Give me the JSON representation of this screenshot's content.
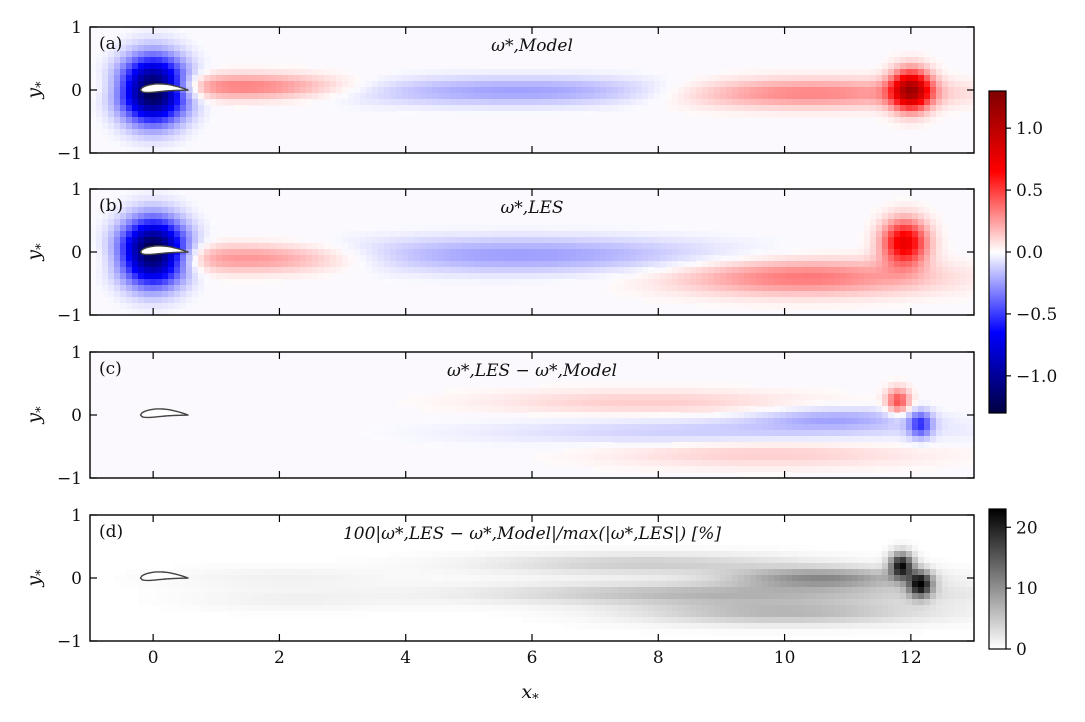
{
  "figure": {
    "xlabel": "x",
    "xlabel_sub": "*",
    "ylabel": "y",
    "ylabel_sub": "*"
  },
  "chart_data": [
    {
      "type": "heatmap",
      "panel": "(a)",
      "title": "ω*,Model",
      "xlim": [
        -1,
        13
      ],
      "ylim": [
        -1,
        1
      ],
      "xticks": [
        0,
        2,
        4,
        6,
        8,
        10,
        12
      ],
      "yticks": [
        -1,
        0,
        1
      ],
      "colorbar": "diverging",
      "blobs": [
        {
          "x": 0.0,
          "y": 0.0,
          "sx": 0.35,
          "sy": 0.35,
          "amp": -1.35
        },
        {
          "x": 1.5,
          "y": 0.05,
          "sx": 1.1,
          "sy": 0.14,
          "amp": 0.35
        },
        {
          "x": 6.0,
          "y": -0.02,
          "sx": 2.2,
          "sy": 0.16,
          "amp": -0.25
        },
        {
          "x": 10.2,
          "y": -0.05,
          "sx": 1.6,
          "sy": 0.16,
          "amp": 0.35
        },
        {
          "x": 12.0,
          "y": 0.0,
          "sx": 0.22,
          "sy": 0.22,
          "amp": 1.0
        }
      ],
      "airfoil_outline": true
    },
    {
      "type": "heatmap",
      "panel": "(b)",
      "title": "ω*,LES",
      "xlim": [
        -1,
        13
      ],
      "ylim": [
        -1,
        1
      ],
      "xticks": [
        0,
        2,
        4,
        6,
        8,
        10,
        12
      ],
      "yticks": [
        -1,
        0,
        1
      ],
      "colorbar": "diverging",
      "blobs": [
        {
          "x": 0.0,
          "y": 0.0,
          "sx": 0.35,
          "sy": 0.35,
          "amp": -1.35
        },
        {
          "x": 1.6,
          "y": -0.1,
          "sx": 1.2,
          "sy": 0.16,
          "amp": 0.3
        },
        {
          "x": 5.8,
          "y": -0.05,
          "sx": 2.2,
          "sy": 0.2,
          "amp": -0.25
        },
        {
          "x": 10.3,
          "y": -0.4,
          "sx": 1.4,
          "sy": 0.2,
          "amp": 0.35
        },
        {
          "x": 11.9,
          "y": 0.15,
          "sx": 0.25,
          "sy": 0.25,
          "amp": 0.75
        }
      ],
      "airfoil_outline": true
    },
    {
      "type": "heatmap",
      "panel": "(c)",
      "title": "ω*,LES − ω*,Model",
      "xlim": [
        -1,
        13
      ],
      "ylim": [
        -1,
        1
      ],
      "xticks": [
        0,
        2,
        4,
        6,
        8,
        10,
        12
      ],
      "yticks": [
        -1,
        0,
        1
      ],
      "colorbar": "diverging",
      "blobs": [
        {
          "x": 7.8,
          "y": 0.2,
          "sx": 1.8,
          "sy": 0.14,
          "amp": 0.13
        },
        {
          "x": 9.0,
          "y": -0.28,
          "sx": 2.6,
          "sy": 0.16,
          "amp": -0.14
        },
        {
          "x": 10.8,
          "y": -0.05,
          "sx": 0.9,
          "sy": 0.12,
          "amp": -0.2
        },
        {
          "x": 9.7,
          "y": -0.6,
          "sx": 1.8,
          "sy": 0.16,
          "amp": 0.14
        },
        {
          "x": 11.8,
          "y": 0.22,
          "sx": 0.13,
          "sy": 0.14,
          "amp": 0.45
        },
        {
          "x": 12.15,
          "y": -0.15,
          "sx": 0.13,
          "sy": 0.15,
          "amp": -0.45
        }
      ],
      "airfoil_outline": true
    },
    {
      "type": "heatmap",
      "panel": "(d)",
      "title": "100|ω*,LES − ω*,Model|/max(|ω*,LES|) [%]",
      "xlim": [
        -1,
        13
      ],
      "ylim": [
        -1,
        1
      ],
      "xticks": [
        0,
        2,
        4,
        6,
        8,
        10,
        12
      ],
      "yticks": [
        -1,
        0,
        1
      ],
      "colorbar": "gray",
      "blobs": [
        {
          "x": 2.0,
          "y": 0.0,
          "sx": 1.3,
          "sy": 0.12,
          "amp": 1.2
        },
        {
          "x": 2.2,
          "y": -0.35,
          "sx": 1.2,
          "sy": 0.12,
          "amp": 1.2
        },
        {
          "x": 7.8,
          "y": 0.22,
          "sx": 1.8,
          "sy": 0.12,
          "amp": 4.5
        },
        {
          "x": 9.0,
          "y": -0.25,
          "sx": 2.5,
          "sy": 0.12,
          "amp": 6.5
        },
        {
          "x": 10.6,
          "y": 0.0,
          "sx": 1.0,
          "sy": 0.11,
          "amp": 10.0
        },
        {
          "x": 10.0,
          "y": -0.55,
          "sx": 1.6,
          "sy": 0.13,
          "amp": 6.5
        },
        {
          "x": 11.85,
          "y": 0.2,
          "sx": 0.13,
          "sy": 0.14,
          "amp": 21.0
        },
        {
          "x": 12.15,
          "y": -0.1,
          "sx": 0.13,
          "sy": 0.14,
          "amp": 21.0
        }
      ],
      "airfoil_outline": true
    }
  ],
  "colorbars": [
    {
      "cmap": "seismic",
      "range": [
        -1.3,
        1.3
      ],
      "ticks": [
        1.0,
        0.5,
        0.0,
        -0.5,
        -1.0
      ],
      "tick_labels": [
        "1.0",
        "0.5",
        "0.0",
        "−0.5",
        "−1.0"
      ],
      "colors": {
        "low": "#000080",
        "mid_low": "#0000ff",
        "mid": "#ffffff",
        "mid_high": "#ff0000",
        "high": "#800000"
      }
    },
    {
      "cmap": "gray_r",
      "range": [
        0,
        23
      ],
      "ticks": [
        20,
        10,
        0
      ],
      "tick_labels": [
        "20",
        "10",
        "0"
      ],
      "colors": {
        "low": "#ffffff",
        "high": "#000000"
      }
    }
  ]
}
